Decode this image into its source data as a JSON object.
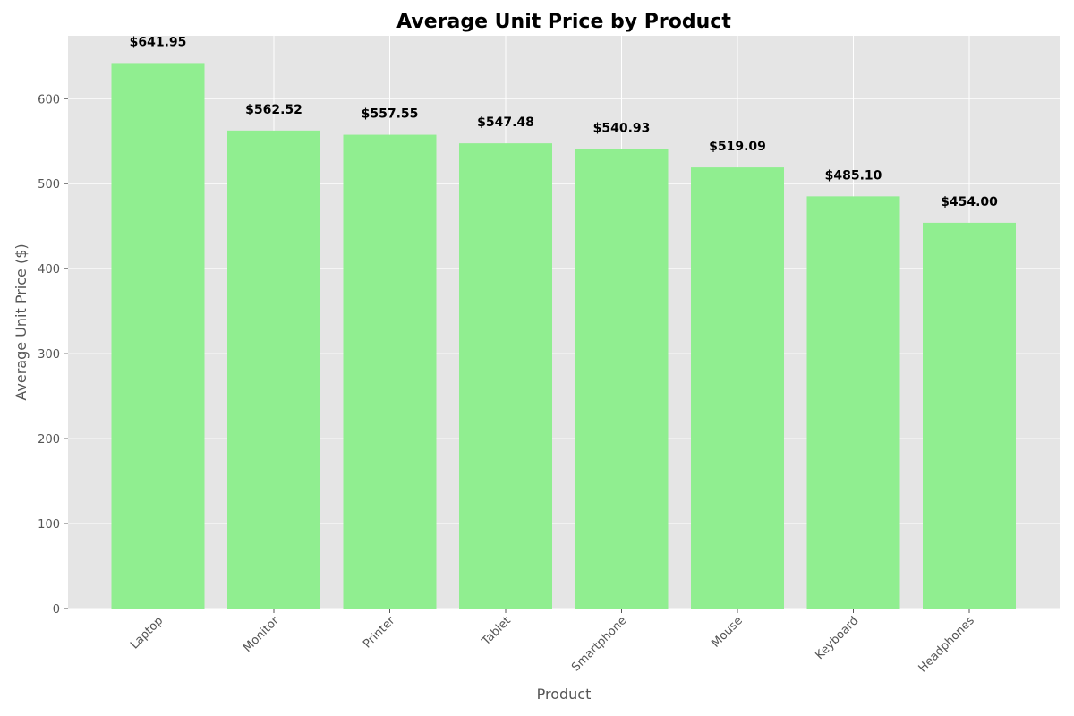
{
  "chart_data": {
    "type": "bar",
    "title": "Average Unit Price by Product",
    "xlabel": "Product",
    "ylabel": "Average Unit Price ($)",
    "categories": [
      "Laptop",
      "Monitor",
      "Printer",
      "Tablet",
      "Smartphone",
      "Mouse",
      "Keyboard",
      "Headphones"
    ],
    "values": [
      641.95,
      562.52,
      557.55,
      547.48,
      540.93,
      519.09,
      485.1,
      454.0
    ],
    "data_labels": [
      "$641.95",
      "$562.52",
      "$557.55",
      "$547.48",
      "$540.93",
      "$519.09",
      "$485.10",
      "$454.00"
    ],
    "ylim": [
      0,
      674
    ],
    "yticks": [
      0,
      100,
      200,
      300,
      400,
      500,
      600
    ],
    "grid": true,
    "legend": "none",
    "x_tick_rotation_deg": 45
  },
  "colors": {
    "bar": "#90ee90",
    "plot_background": "#e5e5e5",
    "grid": "#ffffff",
    "figure_background": "#ffffff"
  }
}
